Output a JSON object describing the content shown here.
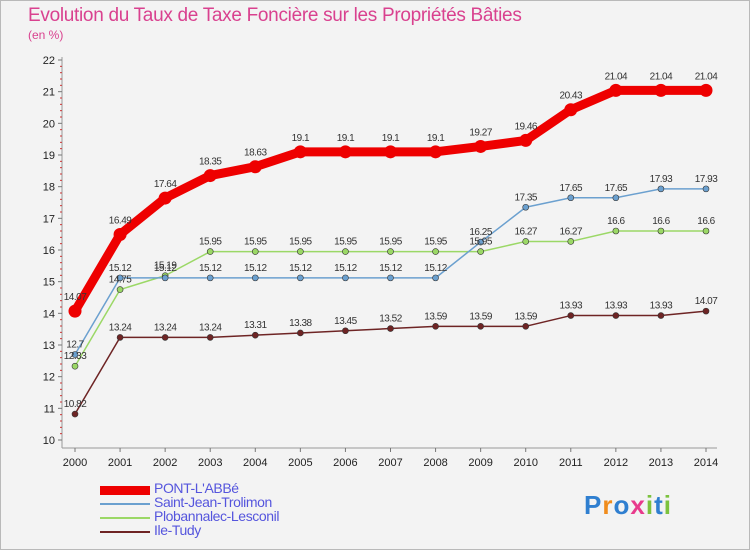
{
  "title": "Evolution du Taux de Taxe Foncière sur les Propriétés Bâties",
  "unit": "(en %)",
  "brand": {
    "text": "Proxiti",
    "colors": [
      "#2f7fd0",
      "#f08c1c",
      "#2f7fd0",
      "#e83a8c",
      "#7cc23e",
      "#2f7fd0",
      "#7cc23e"
    ]
  },
  "chart_data": {
    "type": "line",
    "title": "Evolution du Taux de Taxe Foncière sur les Propriétés Bâties",
    "ylabel": "(en %)",
    "xlabel": "",
    "ylim": [
      10,
      22
    ],
    "yticks": [
      10,
      11,
      12,
      13,
      14,
      15,
      16,
      17,
      18,
      19,
      20,
      21,
      22
    ],
    "grid": false,
    "legend": "bottom-left",
    "x": [
      "2000",
      "2001",
      "2002",
      "2003",
      "2004",
      "2005",
      "2006",
      "2007",
      "2008",
      "2009",
      "2010",
      "2011",
      "2012",
      "2013",
      "2014"
    ],
    "series": [
      {
        "name": "Ile-Tudy",
        "color": "#6e2424",
        "values": [
          10.82,
          13.24,
          13.24,
          13.24,
          13.31,
          13.38,
          13.45,
          13.52,
          13.59,
          13.59,
          13.59,
          13.93,
          13.93,
          13.93,
          14.07
        ],
        "labels": [
          "10.82",
          "13.24",
          "13.24",
          "13.24",
          "13.31",
          "13.38",
          "13.45",
          "13.52",
          "13.59",
          "13.59",
          "13.59",
          "13.93",
          "13.93",
          "13.93",
          "14.07"
        ]
      },
      {
        "name": "Plobannalec-Lesconil",
        "color": "#9bd866",
        "values": [
          12.33,
          14.75,
          15.19,
          15.95,
          15.95,
          15.95,
          15.95,
          15.95,
          15.95,
          15.95,
          16.27,
          16.27,
          16.6,
          16.6,
          16.6
        ],
        "labels": [
          "12.33",
          "14.75",
          "15.19",
          "15.95",
          "15.95",
          "15.95",
          "15.95",
          "15.95",
          "15.95",
          "15.95",
          "16.27",
          "16.27",
          "16.6",
          "16.6",
          "16.6"
        ]
      },
      {
        "name": "Saint-Jean-Trolimon",
        "color": "#6ba0cf",
        "values": [
          12.7,
          15.12,
          15.12,
          15.12,
          15.12,
          15.12,
          15.12,
          15.12,
          15.12,
          16.25,
          17.35,
          17.65,
          17.65,
          17.93,
          17.93
        ],
        "labels": [
          "12.7",
          "15.12",
          "15.12",
          "15.12",
          "15.12",
          "15.12",
          "15.12",
          "15.12",
          "15.12",
          "16.25",
          "17.35",
          "17.65",
          "17.65",
          "17.93",
          "17.93"
        ]
      },
      {
        "name": "PONT-L'ABBé",
        "color": "#ee0000",
        "values": [
          14.07,
          16.49,
          17.64,
          18.35,
          18.63,
          19.1,
          19.1,
          19.1,
          19.1,
          19.27,
          19.46,
          20.43,
          21.04,
          21.04,
          21.04
        ],
        "labels": [
          "14.07",
          "16.49",
          "17.64",
          "18.35",
          "18.63",
          "19.1",
          "19.1",
          "19.1",
          "19.1",
          "19.27",
          "19.46",
          "20.43",
          "21.04",
          "21.04",
          "21.04"
        ]
      }
    ],
    "legend_order": [
      "PONT-L'ABBé",
      "Saint-Jean-Trolimon",
      "Plobannalec-Lesconil",
      "Ile-Tudy"
    ]
  }
}
